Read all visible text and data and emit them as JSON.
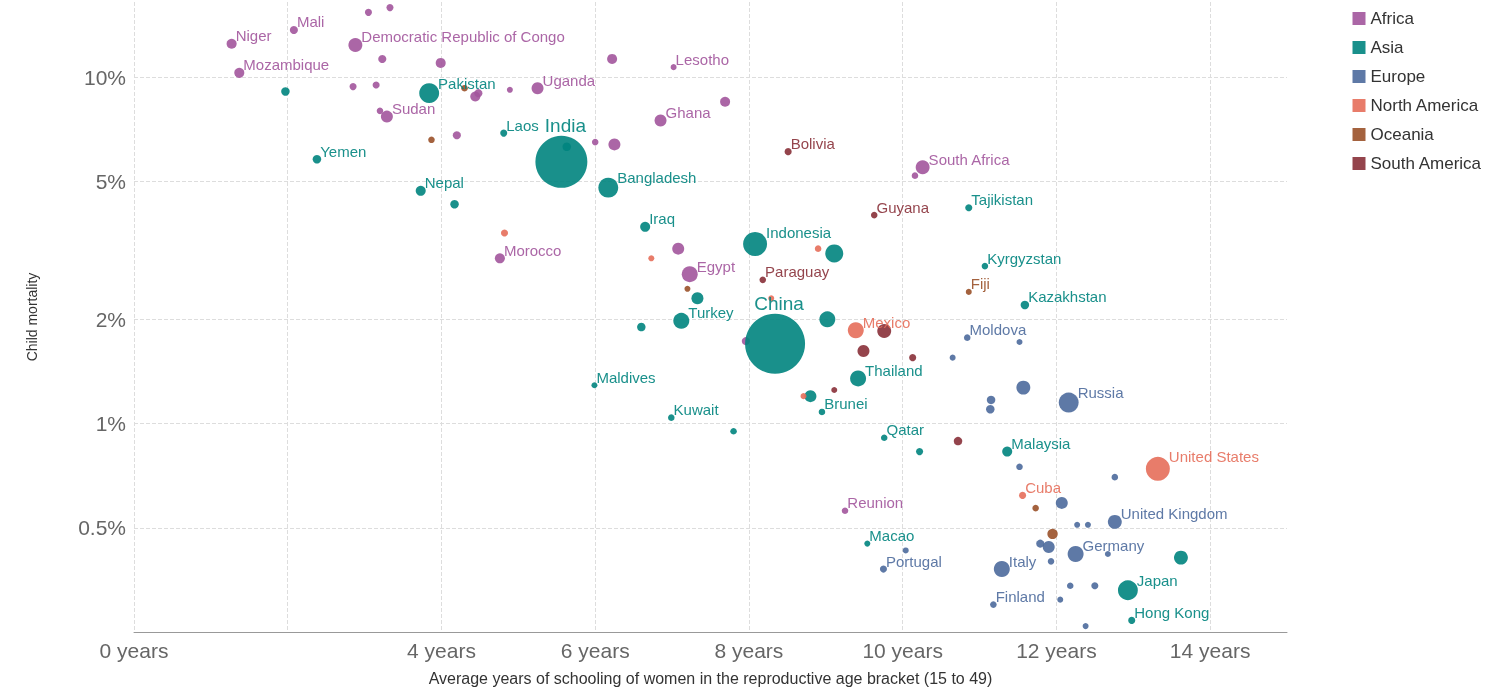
{
  "chart_data": {
    "type": "bubble",
    "xlabel": "Average years of schooling of women in the reproductive age bracket (15 to 49)",
    "ylabel": "Child mortality",
    "log": "y",
    "grid": true,
    "legend": "top right",
    "marker": "circle",
    "xlim": [
      0,
      15
    ],
    "xticks": [
      {
        "value": 0,
        "label": "0 years"
      },
      {
        "value": 2,
        "label": null
      },
      {
        "value": 4,
        "label": "4 years"
      },
      {
        "value": 6,
        "label": "6 years"
      },
      {
        "value": 8,
        "label": "8 years"
      },
      {
        "value": 10,
        "label": "10 years"
      },
      {
        "value": 12,
        "label": "12 years"
      },
      {
        "value": 14,
        "label": "14 years"
      }
    ],
    "ylim": [
      0.25,
      16.5
    ],
    "yticks": [
      {
        "value": 0.5,
        "label": "0.5%"
      },
      {
        "value": 1,
        "label": "1%"
      },
      {
        "value": 2,
        "label": "2%"
      },
      {
        "value": 5,
        "label": "5%"
      },
      {
        "value": 10,
        "label": "10%"
      }
    ],
    "series": [
      {
        "name": "Africa",
        "color": "#a2559c",
        "x": [
          1.27,
          2.08,
          2.88,
          1.37,
          3.05,
          3.33,
          3.23,
          3.99,
          2.85,
          3.15,
          3.29,
          3.2,
          4.44,
          4.48,
          4.89,
          5.25,
          6.22,
          7.02,
          6.85,
          7.69,
          6.25,
          6.0,
          4.2,
          4.76,
          7.23,
          7.08,
          10.26,
          10.16,
          9.25,
          7.96
        ],
        "values": [
          12.5,
          13.7,
          12.4,
          10.3,
          15.4,
          15.9,
          11.3,
          11.0,
          9.4,
          9.5,
          7.7,
          8.0,
          8.8,
          9.0,
          9.2,
          9.3,
          11.3,
          10.7,
          7.5,
          8.5,
          6.4,
          6.5,
          6.8,
          3.0,
          2.7,
          3.2,
          5.5,
          5.2,
          0.56,
          1.73
        ],
        "sizes": [
          0.028,
          0.018,
          0.054,
          0.028,
          0.014,
          0.014,
          0.018,
          0.028,
          0.014,
          0.014,
          0.04,
          0.012,
          0.028,
          0.018,
          0.01,
          0.04,
          0.028,
          0.01,
          0.04,
          0.028,
          0.04,
          0.012,
          0.018,
          0.028,
          0.071,
          0.04,
          0.054,
          0.012,
          0.012,
          0.018
        ],
        "value_labels": [
          "Niger",
          "Mali",
          "Democratic Republic of Congo",
          "Mozambique",
          null,
          null,
          null,
          null,
          null,
          null,
          "Sudan",
          null,
          null,
          null,
          null,
          "Uganda",
          null,
          "Lesotho",
          "Ghana",
          null,
          null,
          null,
          null,
          "Morocco",
          "Egypt",
          null,
          "South Africa",
          null,
          "Reunion",
          null
        ]
      },
      {
        "name": "Asia",
        "color": "#00847e",
        "x": [
          3.84,
          1.97,
          2.38,
          4.81,
          5.56,
          5.63,
          6.17,
          3.73,
          4.17,
          6.65,
          8.08,
          9.11,
          10.86,
          11.07,
          11.59,
          7.33,
          7.12,
          6.6,
          8.34,
          9.02,
          9.42,
          8.8,
          8.95,
          5.99,
          6.99,
          7.8,
          9.76,
          10.22,
          11.36,
          9.54,
          12.93,
          13.62,
          12.98
        ],
        "values": [
          9.0,
          9.1,
          5.8,
          6.9,
          5.7,
          6.3,
          4.8,
          4.7,
          4.3,
          3.7,
          3.3,
          3.1,
          4.2,
          2.85,
          2.2,
          2.3,
          1.98,
          1.9,
          1.7,
          2.0,
          1.35,
          1.2,
          1.08,
          1.29,
          1.04,
          0.95,
          0.91,
          0.83,
          0.83,
          0.45,
          0.33,
          0.41,
          0.27
        ],
        "sizes": [
          0.11,
          0.02,
          0.02,
          0.014,
          0.75,
          0.02,
          0.11,
          0.028,
          0.02,
          0.028,
          0.16,
          0.09,
          0.014,
          0.012,
          0.02,
          0.04,
          0.071,
          0.02,
          1,
          0.071,
          0.071,
          0.04,
          0.012,
          0.01,
          0.012,
          0.012,
          0.012,
          0.014,
          0.028,
          0.01,
          0.11,
          0.054,
          0.014
        ],
        "value_labels": [
          "Pakistan",
          null,
          "Yemen",
          "Laos",
          "India",
          null,
          "Bangladesh",
          "Nepal",
          null,
          "Iraq",
          "Indonesia",
          null,
          "Tajikistan",
          "Kyrgyzstan",
          "Kazakhstan",
          null,
          "Turkey",
          null,
          "China",
          null,
          "Thailand",
          null,
          "Brunei",
          "Maldives",
          "Kuwait",
          null,
          "Qatar",
          null,
          "Malaysia",
          "Macao",
          "Japan",
          null,
          "Hong Kong"
        ]
      },
      {
        "name": "Europe",
        "color": "#4c6a9c",
        "x": [
          10.84,
          11.52,
          10.65,
          11.57,
          12.16,
          11.15,
          11.14,
          11.52,
          12.76,
          12.07,
          12.76,
          12.27,
          12.41,
          12.25,
          12.67,
          11.79,
          11.9,
          11.93,
          11.29,
          11.18,
          12.18,
          12.5,
          12.05,
          12.38,
          9.75,
          10.04
        ],
        "values": [
          1.77,
          1.72,
          1.55,
          1.27,
          1.15,
          1.17,
          1.1,
          0.75,
          0.7,
          0.59,
          0.52,
          0.51,
          0.51,
          0.42,
          0.42,
          0.45,
          0.44,
          0.4,
          0.38,
          0.3,
          0.34,
          0.34,
          0.31,
          0.26,
          0.38,
          0.43
        ],
        "sizes": [
          0.012,
          0.01,
          0.01,
          0.054,
          0.11,
          0.02,
          0.02,
          0.012,
          0.012,
          0.04,
          0.054,
          0.01,
          0.01,
          0.071,
          0.01,
          0.018,
          0.04,
          0.012,
          0.071,
          0.012,
          0.012,
          0.014,
          0.01,
          0.01,
          0.014,
          0.01
        ],
        "value_labels": [
          "Moldova",
          null,
          null,
          null,
          "Russia",
          null,
          null,
          null,
          null,
          null,
          "United Kingdom",
          null,
          null,
          "Germany",
          null,
          null,
          null,
          null,
          "Italy",
          "Finland",
          null,
          null,
          null,
          null,
          "Portugal",
          null
        ]
      },
      {
        "name": "North America",
        "color": "#e56e5a",
        "x": [
          9.39,
          13.32,
          11.56,
          6.73,
          8.9,
          4.82,
          8.29,
          8.71
        ],
        "values": [
          1.86,
          0.74,
          0.62,
          3.0,
          3.2,
          3.55,
          2.3,
          1.2
        ],
        "sizes": [
          0.071,
          0.16,
          0.014,
          0.01,
          0.012,
          0.014,
          0.01,
          0.01
        ],
        "value_labels": [
          "Mexico",
          "United States",
          "Cuba",
          null,
          null,
          null,
          null,
          null
        ]
      },
      {
        "name": "Oceania",
        "color": "#9a5129",
        "x": [
          10.86,
          4.3,
          3.87,
          7.2,
          11.73,
          11.95
        ],
        "values": [
          2.4,
          9.3,
          6.6,
          2.45,
          0.57,
          0.48
        ],
        "sizes": [
          0.01,
          0.012,
          0.012,
          0.01,
          0.012,
          0.03
        ],
        "value_labels": [
          "Fiji",
          null,
          null,
          null,
          null,
          null
        ]
      },
      {
        "name": "South America",
        "color": "#883039",
        "x": [
          8.51,
          9.63,
          8.18,
          9.76,
          9.49,
          10.13,
          9.11,
          10.72
        ],
        "values": [
          6.1,
          4.0,
          2.6,
          1.85,
          1.62,
          1.55,
          1.25,
          0.89
        ],
        "sizes": [
          0.014,
          0.012,
          0.012,
          0.054,
          0.04,
          0.014,
          0.01,
          0.02
        ],
        "value_labels": [
          "Bolivia",
          "Guyana",
          "Paraguay",
          null,
          null,
          null,
          null,
          null
        ]
      }
    ]
  }
}
